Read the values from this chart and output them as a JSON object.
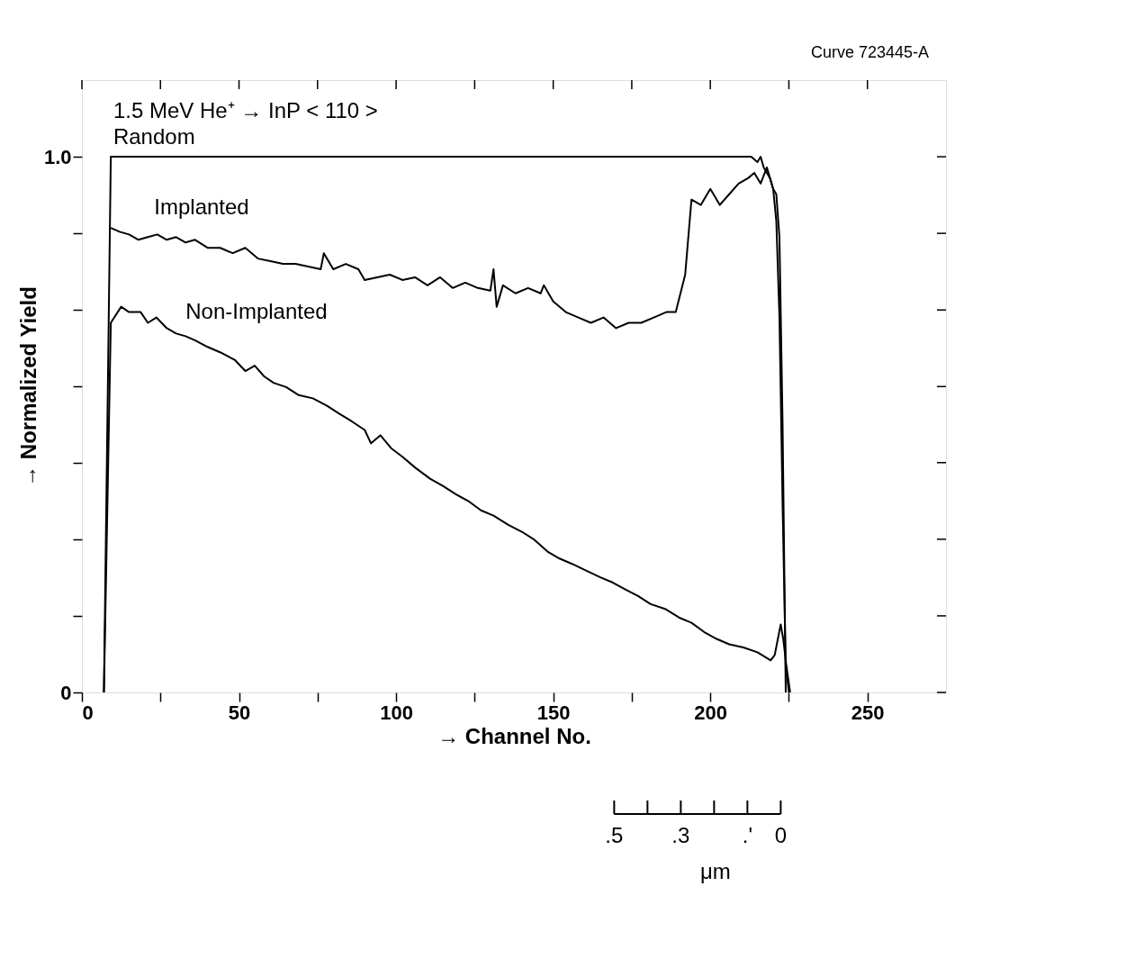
{
  "chart_data": {
    "type": "line",
    "xlabel": "→ Channel No.",
    "ylabel": "→ Normalized Yield",
    "annotations": [
      "Curve 723445-A",
      "1.5 MeV He⁺ → InP < 110 >",
      ".5",
      ".3",
      ".'",
      "0",
      "μm"
    ],
    "series": [
      {
        "name": "Random",
        "color": "#000000",
        "x": [
          7,
          9.2,
          50,
          100,
          150,
          200,
          213,
          215,
          216,
          217,
          218,
          219,
          220,
          221,
          222,
          223,
          224,
          225
        ],
        "values": [
          0,
          1.0,
          1.0,
          1.0,
          1.0,
          1.0,
          1.0,
          0.99,
          1.0,
          0.98,
          0.97,
          0.96,
          0.94,
          0.88,
          0.7,
          0.35,
          0.05,
          0
        ]
      },
      {
        "name": "Implanted",
        "color": "#000000",
        "x": [
          9.2,
          12,
          15,
          18,
          21,
          24,
          27,
          30,
          33,
          36,
          40,
          44,
          48,
          52,
          56,
          60,
          64,
          68,
          72,
          76,
          77,
          80,
          84,
          88,
          90,
          94,
          98,
          102,
          106,
          110,
          114,
          118,
          122,
          126,
          130,
          131,
          132,
          134,
          138,
          142,
          146,
          147,
          150,
          154,
          158,
          162,
          166,
          170,
          174,
          178,
          182,
          186,
          189,
          192,
          194,
          197,
          200,
          203,
          206,
          209,
          212,
          214,
          216,
          218,
          220,
          221,
          222,
          223,
          224
        ],
        "values": [
          0.867,
          0.86,
          0.855,
          0.845,
          0.85,
          0.855,
          0.845,
          0.85,
          0.84,
          0.845,
          0.83,
          0.83,
          0.82,
          0.83,
          0.81,
          0.805,
          0.8,
          0.8,
          0.795,
          0.79,
          0.82,
          0.79,
          0.8,
          0.79,
          0.77,
          0.775,
          0.78,
          0.77,
          0.775,
          0.76,
          0.775,
          0.755,
          0.765,
          0.755,
          0.75,
          0.79,
          0.72,
          0.76,
          0.745,
          0.755,
          0.745,
          0.76,
          0.73,
          0.71,
          0.7,
          0.69,
          0.7,
          0.68,
          0.69,
          0.69,
          0.7,
          0.71,
          0.71,
          0.78,
          0.92,
          0.91,
          0.94,
          0.91,
          0.93,
          0.95,
          0.96,
          0.97,
          0.95,
          0.98,
          0.94,
          0.93,
          0.85,
          0.5,
          0
        ]
      },
      {
        "name": "Non-Implanted",
        "color": "#000000",
        "x": [
          7,
          9.2,
          12.5,
          15,
          18.7,
          21,
          23.7,
          27,
          30,
          33,
          36.1,
          40,
          44,
          48.6,
          52,
          55,
          58,
          61,
          65,
          69,
          73.5,
          78,
          82,
          85.9,
          90,
          92,
          95,
          98.4,
          102,
          106,
          110.8,
          115,
          119,
          123.3,
          127,
          131,
          135.7,
          140,
          144,
          148.2,
          152,
          156,
          160.6,
          165,
          169,
          173.1,
          177,
          181,
          185.6,
          190,
          194,
          198,
          202,
          206,
          210.5,
          215,
          219.2,
          220.5,
          221.5,
          222.4,
          223.2,
          224.2,
          225.4
        ],
        "values": [
          0,
          0.69,
          0.72,
          0.71,
          0.71,
          0.69,
          0.7,
          0.68,
          0.67,
          0.665,
          0.657,
          0.645,
          0.635,
          0.621,
          0.6,
          0.61,
          0.59,
          0.578,
          0.57,
          0.555,
          0.549,
          0.535,
          0.52,
          0.506,
          0.49,
          0.465,
          0.48,
          0.456,
          0.44,
          0.42,
          0.399,
          0.385,
          0.37,
          0.356,
          0.34,
          0.33,
          0.313,
          0.3,
          0.285,
          0.263,
          0.25,
          0.24,
          0.227,
          0.215,
          0.205,
          0.192,
          0.18,
          0.165,
          0.156,
          0.14,
          0.13,
          0.113,
          0.1,
          0.09,
          0.084,
          0.075,
          0.06,
          0.07,
          0.1,
          0.127,
          0.1,
          0.05,
          0
        ]
      }
    ],
    "xlim": [
      0,
      275
    ],
    "xticks": [
      0,
      {
        "value": 25,
        "label": null
      },
      50,
      {
        "value": 75,
        "label": null
      },
      100,
      {
        "value": 125,
        "label": null
      },
      150,
      {
        "value": 175,
        "label": null
      },
      200,
      {
        "value": 225,
        "label": null
      },
      250
    ],
    "ylim": [
      0,
      1.143
    ],
    "yticks": [
      0,
      {
        "value": 0.143,
        "label": null
      },
      {
        "value": 0.286,
        "label": null
      },
      {
        "value": 0.429,
        "label": null
      },
      {
        "value": 0.571,
        "label": null
      },
      {
        "value": 0.714,
        "label": null
      },
      {
        "value": 0.857,
        "label": null
      },
      {
        "value": 1.0,
        "label": "1.0"
      }
    ],
    "grid": false,
    "marker": "none",
    "line_style": "solid"
  }
}
